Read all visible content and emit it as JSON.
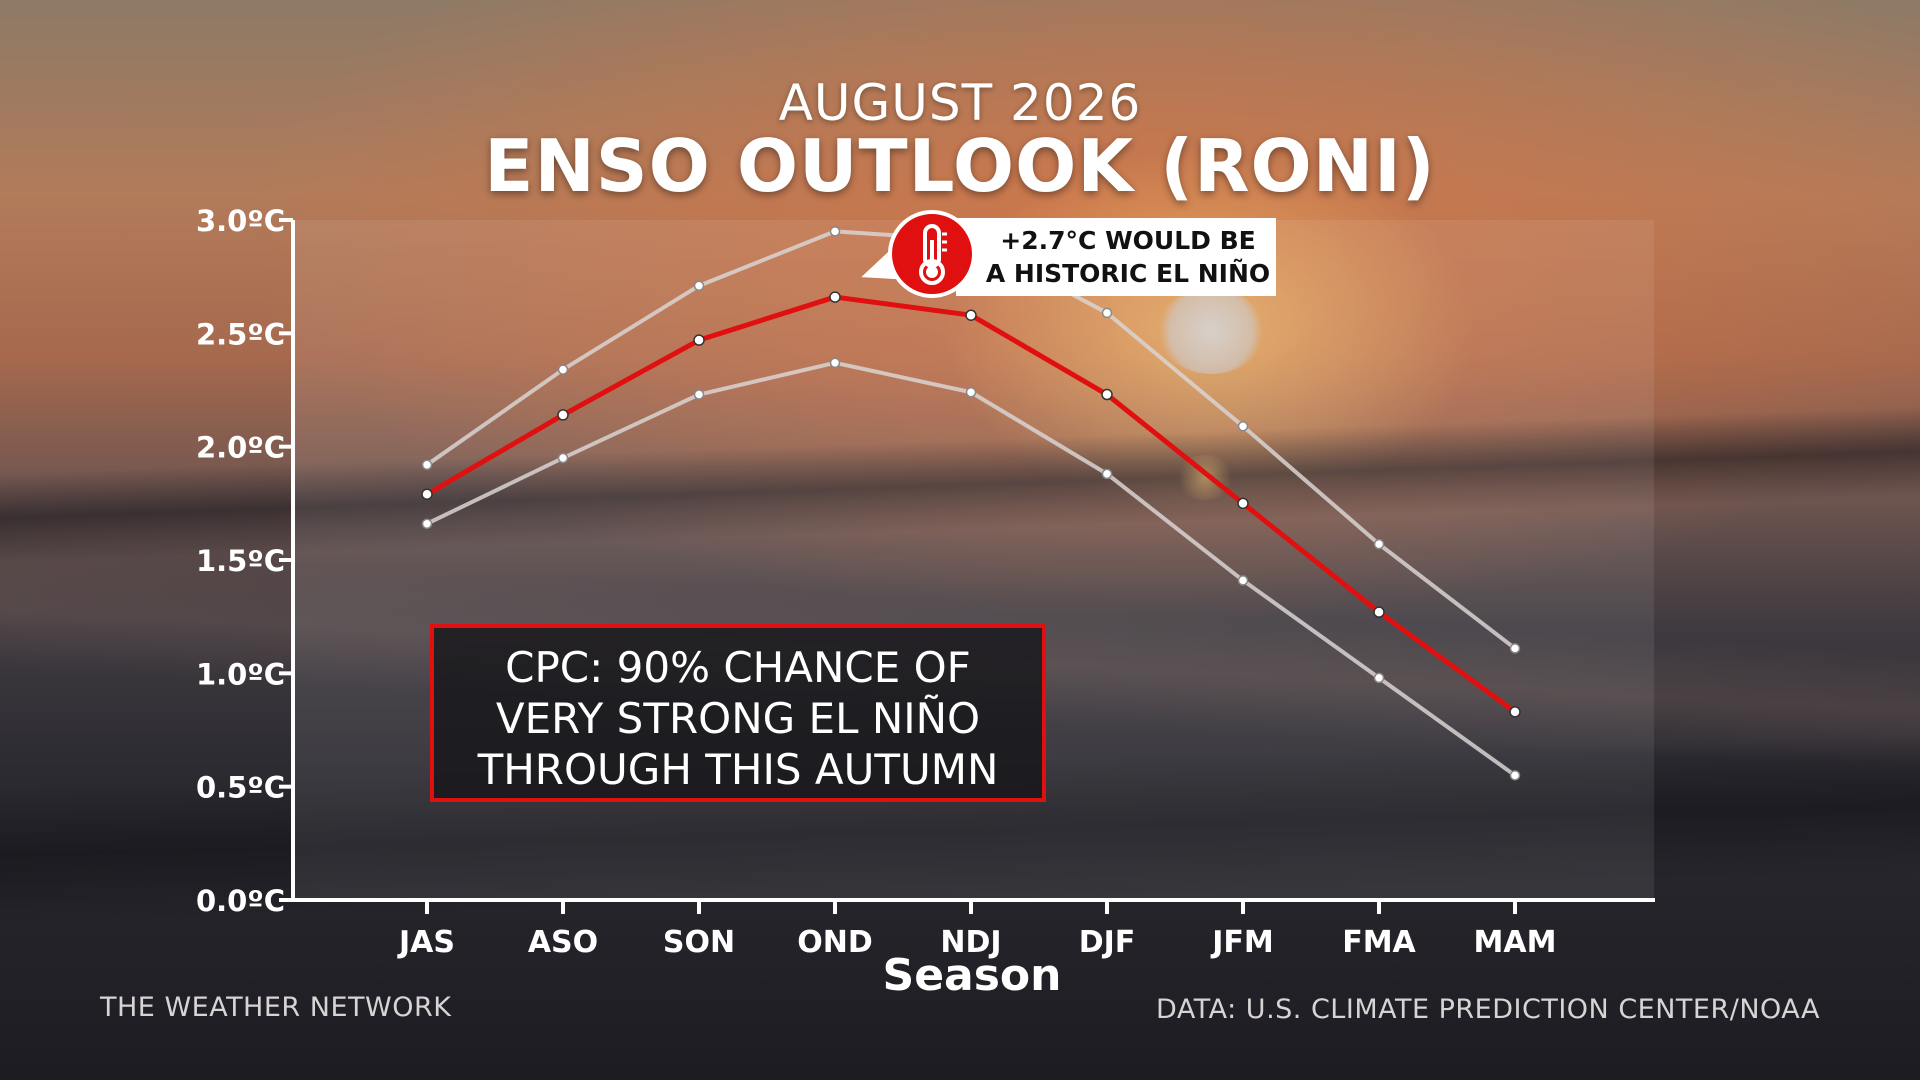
{
  "header": {
    "subtitle": "AUGUST 2026",
    "title": "ENSO OUTLOOK (RONI)"
  },
  "callout": {
    "line1": "+2.7°C WOULD BE",
    "line2": "A HISTORIC EL NIÑO",
    "icon": "thermometer-icon"
  },
  "cpc_box": {
    "line1": "CPC: 90% CHANCE OF",
    "line2": "VERY STRONG EL NIÑO",
    "line3": "THROUGH THIS AUTUMN"
  },
  "footer": {
    "left": "THE WEATHER NETWORK",
    "right": "DATA: U.S. CLIMATE PREDICTION CENTER/NOAA"
  },
  "colors": {
    "forecast_line": "#e01010",
    "range_lines": "#d9d4d2",
    "box_border": "#e01010"
  },
  "chart_data": {
    "type": "line",
    "title": "ENSO OUTLOOK (RONI)",
    "subtitle": "AUGUST 2026",
    "xlabel": "Season",
    "ylabel": "",
    "categories": [
      "JAS",
      "ASO",
      "SON",
      "OND",
      "NDJ",
      "DJF",
      "JFM",
      "FMA",
      "MAM"
    ],
    "y_ticks": [
      "0.0ºC",
      "0.5ºC",
      "1.0ºC",
      "1.5ºC",
      "2.0ºC",
      "2.5ºC",
      "3.0ºC"
    ],
    "ylim": [
      0,
      3.0
    ],
    "grid": false,
    "series": [
      {
        "role": "upper",
        "values": [
          1.92,
          2.34,
          2.71,
          2.95,
          2.91,
          2.59,
          2.09,
          1.57,
          1.11
        ]
      },
      {
        "role": "forecast",
        "values": [
          1.79,
          2.14,
          2.47,
          2.66,
          2.58,
          2.23,
          1.75,
          1.27,
          0.83
        ]
      },
      {
        "role": "lower",
        "values": [
          1.66,
          1.95,
          2.23,
          2.37,
          2.24,
          1.88,
          1.41,
          0.98,
          0.55
        ]
      }
    ]
  }
}
